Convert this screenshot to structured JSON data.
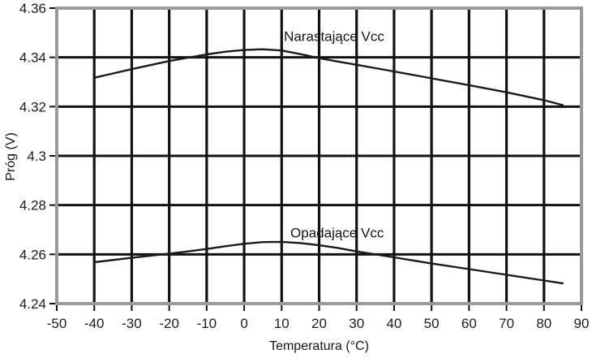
{
  "chart_data": {
    "type": "line",
    "title": "",
    "xlabel": "Temperatura (°C)",
    "ylabel": "Próg (V)",
    "xlim": [
      -50,
      90
    ],
    "ylim": [
      4.24,
      4.36
    ],
    "x_ticks": [
      -50,
      -40,
      -30,
      -20,
      -10,
      0,
      10,
      20,
      30,
      40,
      50,
      60,
      70,
      80,
      90
    ],
    "x_tick_labels": [
      "-50",
      "-40",
      "-30",
      "-20",
      "-10",
      "0",
      "10",
      "20",
      "30",
      "40",
      "50",
      "60",
      "70",
      "80",
      "90"
    ],
    "y_ticks": [
      4.24,
      4.26,
      4.28,
      4.3,
      4.32,
      4.34,
      4.36
    ],
    "y_tick_labels": [
      "4.24",
      "4.26",
      "4.28",
      "4.3",
      "4.32",
      "4.34",
      "4.36"
    ],
    "grid": true,
    "legend_position": "inline-labels",
    "series": [
      {
        "name": "Narastające Vcc",
        "x": [
          -40,
          -30,
          -20,
          -15,
          -10,
          -5,
          0,
          5,
          10,
          15,
          20,
          25,
          30,
          40,
          50,
          60,
          70,
          80,
          85
        ],
        "y": [
          4.3317,
          4.3352,
          4.3385,
          4.3399,
          4.3412,
          4.3423,
          4.343,
          4.3433,
          4.3428,
          4.3413,
          4.3397,
          4.3383,
          4.337,
          4.3343,
          4.3315,
          4.3287,
          4.3258,
          4.3226,
          4.3206
        ],
        "label": {
          "x": 24,
          "y": 4.3485
        }
      },
      {
        "name": "Opadające Vcc",
        "x": [
          -40,
          -30,
          -20,
          -15,
          -10,
          -5,
          0,
          5,
          10,
          15,
          20,
          25,
          30,
          40,
          50,
          60,
          70,
          80,
          85
        ],
        "y": [
          4.2568,
          4.2586,
          4.2603,
          4.2612,
          4.2622,
          4.2633,
          4.2643,
          4.265,
          4.2651,
          4.2646,
          4.2637,
          4.2626,
          4.2612,
          4.2588,
          4.2563,
          4.254,
          4.2517,
          4.2494,
          4.2482
        ],
        "label": {
          "x": 24.8,
          "y": 4.2688
        }
      }
    ],
    "colors": {
      "background": "#ffffff",
      "grid": "#121212",
      "frame": "#9a9a9a",
      "line": "#1a1a1a",
      "tick": "#121212",
      "tick_label": "#1b1b24",
      "axis_title": "#141414"
    }
  }
}
